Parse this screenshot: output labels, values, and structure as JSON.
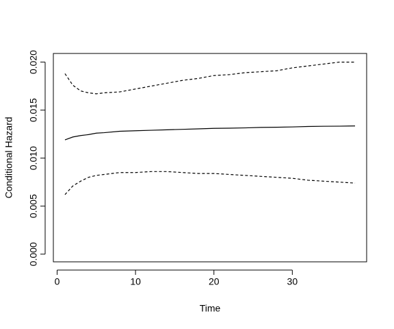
{
  "chart_data": {
    "type": "line",
    "x_label": "Time",
    "y_label": "Conditional Hazard",
    "x": [
      1,
      2,
      3,
      4,
      5,
      6,
      8,
      10,
      12,
      14,
      16,
      18,
      20,
      22,
      24,
      26,
      28,
      30,
      32,
      34,
      36,
      38
    ],
    "series": [
      {
        "color": "#000000",
        "linestyle": "solid",
        "values": [
          0.0119,
          0.0122,
          0.01235,
          0.01245,
          0.0126,
          0.01265,
          0.0128,
          0.01285,
          0.0129,
          0.01295,
          0.013,
          0.01305,
          0.0131,
          0.01312,
          0.01315,
          0.0132,
          0.01322,
          0.01325,
          0.0133,
          0.01332,
          0.01333,
          0.01335
        ]
      },
      {
        "color": "#000000",
        "linestyle": "dashed",
        "values": [
          0.0188,
          0.0176,
          0.017,
          0.0168,
          0.0167,
          0.0168,
          0.0169,
          0.0172,
          0.0175,
          0.0178,
          0.0181,
          0.0183,
          0.0186,
          0.0187,
          0.0189,
          0.019,
          0.0191,
          0.0194,
          0.0196,
          0.0198,
          0.02,
          0.02
        ]
      },
      {
        "color": "#000000",
        "linestyle": "dashed",
        "values": [
          0.0062,
          0.0071,
          0.0076,
          0.008,
          0.0082,
          0.0083,
          0.0085,
          0.0085,
          0.0086,
          0.0086,
          0.0085,
          0.0084,
          0.0084,
          0.0083,
          0.0082,
          0.0081,
          0.008,
          0.0079,
          0.0077,
          0.0076,
          0.0075,
          0.0074
        ]
      }
    ],
    "xlim": [
      -0.48,
      39.48
    ],
    "xticks": [
      0,
      10,
      20,
      30
    ],
    "ylim": [
      -0.0008,
      0.0209
    ],
    "yticks": [
      {
        "value": 0,
        "label": "0.000"
      },
      {
        "value": 0.005,
        "label": "0.005"
      },
      {
        "value": 0.01,
        "label": "0.010"
      },
      {
        "value": 0.015,
        "label": "0.015"
      },
      {
        "value": 0.02,
        "label": "0.020"
      }
    ]
  }
}
